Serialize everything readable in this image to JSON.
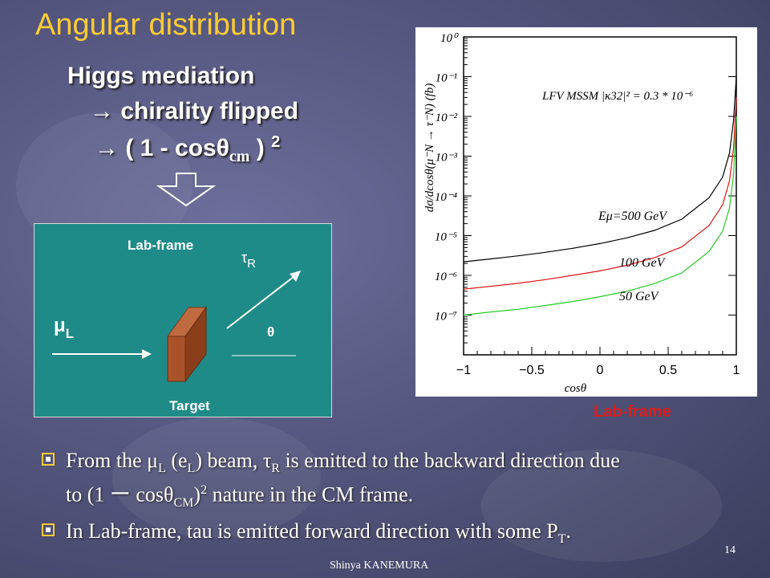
{
  "slide": {
    "title": "Angular distribution",
    "lines": [
      "Higgs mediation",
      "→  chirality flipped",
      "→  ( 1 - cosθ",
      "cm",
      " ) ",
      "2"
    ]
  },
  "diagram": {
    "label_top": "Lab-frame",
    "tau_label": "τ",
    "tau_sub": "R",
    "mu_label": "μ",
    "mu_sub": "L",
    "theta": "θ",
    "target_label": "Target"
  },
  "chart_data": {
    "type": "line",
    "title": "",
    "annotation": "LFV MSSM |κ32|² = 0.3 * 10⁻⁶",
    "xlabel": "cosθ",
    "ylabel": "dσ/dcosθ(μ⁻N → τ⁻N) (fb)",
    "xlim": [
      -1,
      1
    ],
    "ylim": [
      1e-08,
      1
    ],
    "log_y": true,
    "x_ticks": [
      "−1",
      "−0.5",
      "0",
      "0.5",
      "1"
    ],
    "y_ticks": [
      "10⁰",
      "10⁻¹",
      "10⁻²",
      "10⁻³",
      "10⁻⁴",
      "10⁻⁵",
      "10⁻⁶",
      "10⁻⁷"
    ],
    "x": [
      -1,
      -0.8,
      -0.6,
      -0.4,
      -0.2,
      0,
      0.2,
      0.4,
      0.6,
      0.8,
      0.9,
      0.95,
      0.98,
      1.0
    ],
    "series": [
      {
        "name": "Eμ=500 GeV",
        "color": "#000000",
        "values": [
          2.2e-06,
          2.6e-06,
          3.1e-06,
          3.8e-06,
          4.8e-06,
          6.3e-06,
          8.8e-06,
          1.35e-05,
          2.6e-05,
          9e-05,
          0.0003,
          0.0012,
          0.008,
          0.1
        ]
      },
      {
        "name": "100 GeV",
        "color": "#e01414",
        "values": [
          4.5e-07,
          5.3e-07,
          6.3e-07,
          7.8e-07,
          1e-06,
          1.3e-06,
          1.8e-06,
          2.8e-06,
          5.2e-06,
          1.8e-05,
          6e-05,
          0.00024,
          0.0016,
          0.03
        ]
      },
      {
        "name": "50 GeV",
        "color": "#22cc22",
        "values": [
          1e-07,
          1.2e-07,
          1.4e-07,
          1.75e-07,
          2.2e-07,
          2.9e-07,
          4e-07,
          6.2e-07,
          1.15e-06,
          4e-06,
          1.3e-05,
          5e-05,
          0.00035,
          0.01
        ]
      }
    ]
  },
  "lab_frame_caption": "Lab-frame",
  "bullets": [
    {
      "pre": "From the ",
      "mu": "μ",
      "mu_sub": "L",
      "mid1": " (",
      "e": "e",
      "e_sub": "L",
      "mid2": ") beam, ",
      "tau": "τ",
      "tau_sub": "R",
      "rest": " is emitted to the backward direction due",
      "line2": "to  (1 ー cosθ",
      "line2_sub": "CM",
      "line2_sup": "2",
      "line2_rest": "    nature in the CM frame."
    },
    {
      "text": "In Lab-frame, tau is emitted forward direction with some P",
      "sub": "T",
      "end": "."
    }
  ],
  "footer": {
    "name": "Shinya KANEMURA",
    "page": "14"
  }
}
